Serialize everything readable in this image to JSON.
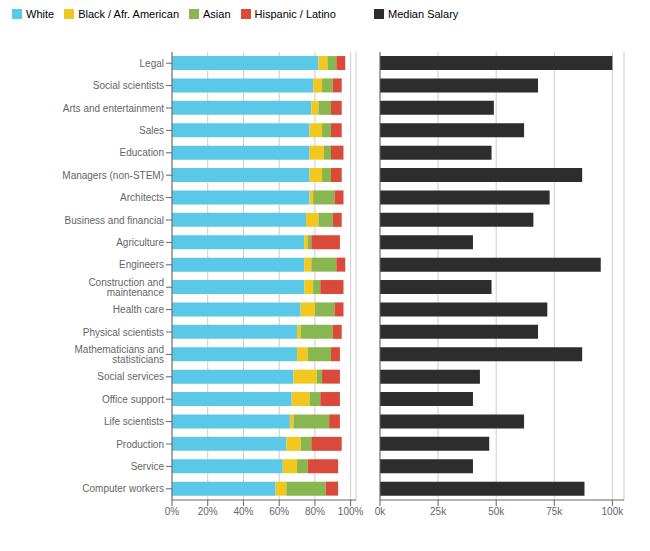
{
  "chart_data": [
    {
      "type": "bar",
      "orientation": "horizontal",
      "stacked": true,
      "grid": true,
      "legend": "upper left",
      "categories": [
        "Legal",
        "Social scientists",
        "Arts and entertainment",
        "Sales",
        "Education",
        "Managers (non-STEM)",
        "Architects",
        "Business and financial",
        "Agriculture",
        "Engineers",
        "Construction and maintenance",
        "Health care",
        "Physical scientists",
        "Mathematicians and statisticians",
        "Social services",
        "Office support",
        "Life scientists",
        "Production",
        "Service",
        "Computer workers"
      ],
      "series": [
        {
          "name": "White",
          "color": "#5bc8e8",
          "values": [
            82,
            79,
            78,
            77,
            77,
            77,
            77,
            75,
            74,
            74,
            74,
            72,
            70,
            70,
            68,
            67,
            66,
            64,
            62,
            58
          ]
        },
        {
          "name": "Black / Afr. American",
          "color": "#f2c81e",
          "values": [
            5,
            5,
            4,
            7,
            8,
            7,
            2,
            7,
            2,
            4,
            5,
            8,
            2,
            6,
            13,
            10,
            2,
            8,
            8,
            6
          ]
        },
        {
          "name": "Asian",
          "color": "#87b74e",
          "values": [
            5,
            6,
            7,
            5,
            4,
            5,
            12,
            8,
            2,
            14,
            4,
            11,
            18,
            13,
            3,
            6,
            20,
            6,
            6,
            22
          ]
        },
        {
          "name": "Hispanic / Latino",
          "color": "#d94a3a",
          "values": [
            5,
            5,
            6,
            6,
            7,
            6,
            5,
            5,
            16,
            5,
            13,
            5,
            5,
            5,
            10,
            11,
            6,
            17,
            17,
            7
          ]
        }
      ],
      "xlim": [
        0,
        103
      ],
      "xticks": [
        {
          "value": 0,
          "label": "0%"
        },
        {
          "value": 20,
          "label": "20%"
        },
        {
          "value": 40,
          "label": "40%"
        },
        {
          "value": 60,
          "label": "60%"
        },
        {
          "value": 80,
          "label": "80%"
        },
        {
          "value": 100,
          "label": "100%"
        }
      ]
    },
    {
      "type": "bar",
      "orientation": "horizontal",
      "grid": true,
      "legend": "upper left",
      "tick_labels": "x",
      "categories": [
        "Legal",
        "Social scientists",
        "Arts and entertainment",
        "Sales",
        "Education",
        "Managers (non-STEM)",
        "Architects",
        "Business and financial",
        "Agriculture",
        "Engineers",
        "Construction and maintenance",
        "Health care",
        "Physical scientists",
        "Mathematicians and statisticians",
        "Social services",
        "Office support",
        "Life scientists",
        "Production",
        "Service",
        "Computer workers"
      ],
      "series": [
        {
          "name": "Median Salary",
          "color": "#2d2d2d",
          "values": [
            100000,
            68000,
            49000,
            62000,
            48000,
            87000,
            73000,
            66000,
            40000,
            95000,
            48000,
            72000,
            68000,
            87000,
            43000,
            40000,
            62000,
            47000,
            40000,
            88000
          ]
        }
      ],
      "xlim": [
        0,
        105000
      ],
      "xticks": [
        {
          "value": 0,
          "label": "0k"
        },
        {
          "value": 25000,
          "label": "25k"
        },
        {
          "value": 50000,
          "label": "50k"
        },
        {
          "value": 75000,
          "label": "75k"
        },
        {
          "value": 100000,
          "label": "100k"
        }
      ]
    }
  ]
}
